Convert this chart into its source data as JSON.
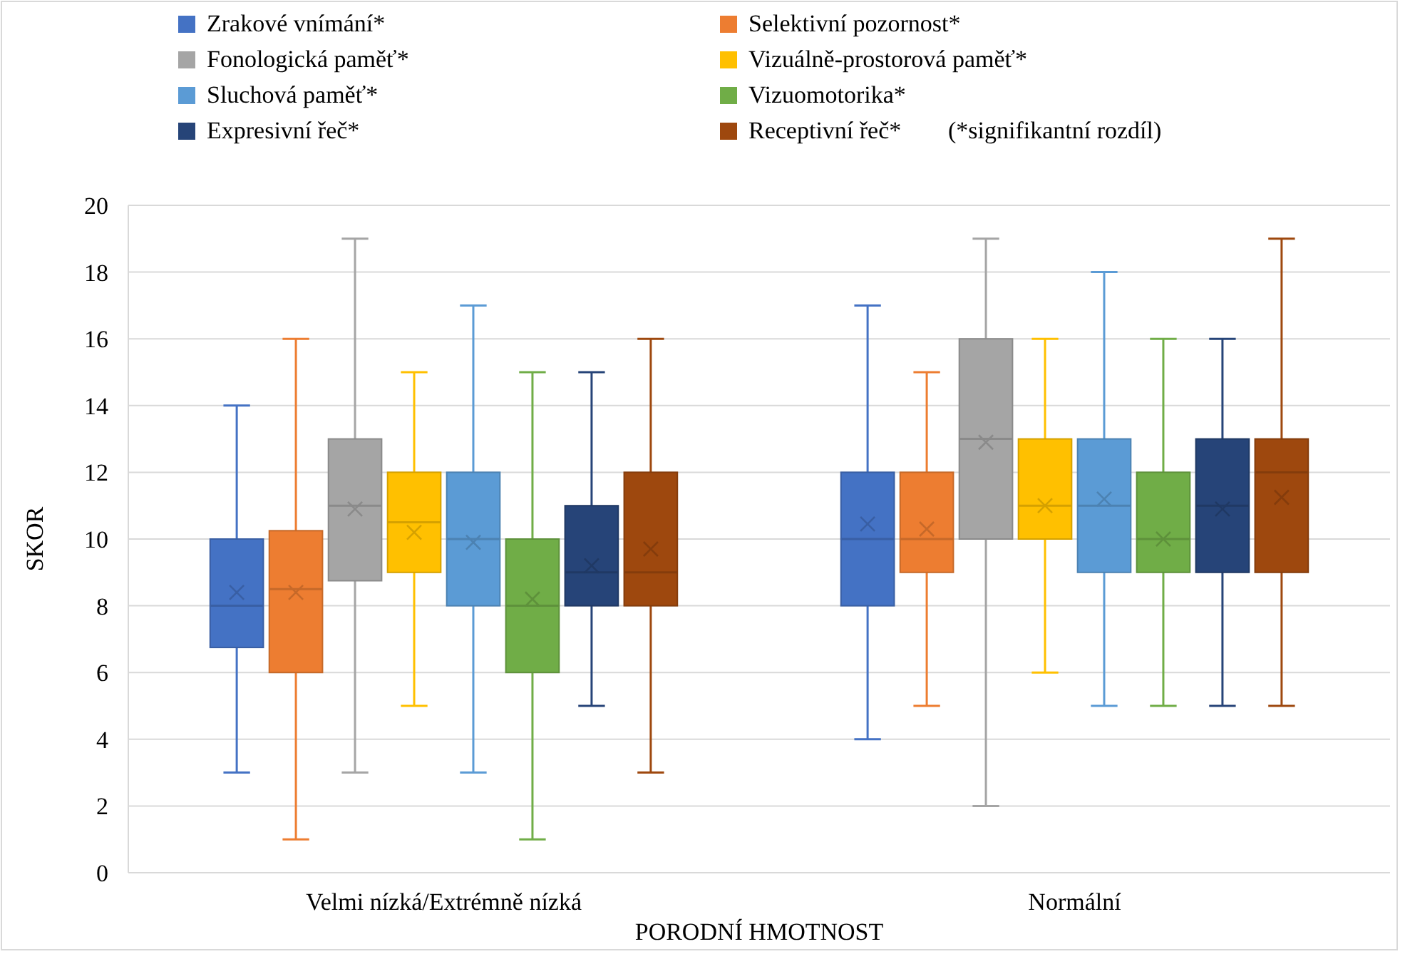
{
  "chart_data": {
    "type": "box",
    "xlabel": "PORODNÍ HMOTNOST",
    "ylabel": "SKOR",
    "categories": [
      "Velmi nízká/Extrémně nízká",
      "Normální"
    ],
    "ylim": [
      0,
      20
    ],
    "yticks": [
      0,
      2,
      4,
      6,
      8,
      10,
      12,
      14,
      16,
      18,
      20
    ],
    "grid": "y",
    "legend": "top",
    "annotations": [
      "(*signifikantní rozdíl)"
    ],
    "series": [
      {
        "name": "Zrakové vnímání*",
        "color": "#4472c4",
        "boxes": [
          {
            "low": 3,
            "q1": 6.75,
            "median": 8,
            "q3": 10,
            "high": 14,
            "mean": 8.4
          },
          {
            "low": 4,
            "q1": 8,
            "median": 10,
            "q3": 12,
            "high": 17,
            "mean": 10.45
          }
        ]
      },
      {
        "name": "Selektivní pozornost*",
        "color": "#ed7d31",
        "boxes": [
          {
            "low": 1,
            "q1": 6,
            "median": 8.5,
            "q3": 10.25,
            "high": 16,
            "mean": 8.4
          },
          {
            "low": 5,
            "q1": 9,
            "median": 10,
            "q3": 12,
            "high": 15,
            "mean": 10.3
          }
        ]
      },
      {
        "name": "Fonologická paměť*",
        "color": "#a5a5a5",
        "boxes": [
          {
            "low": 3,
            "q1": 8.75,
            "median": 11,
            "q3": 13,
            "high": 19,
            "mean": 10.9
          },
          {
            "low": 2,
            "q1": 10,
            "median": 13,
            "q3": 16,
            "high": 19,
            "mean": 12.9
          }
        ]
      },
      {
        "name": "Vizuálně-prostorová paměť*",
        "color": "#ffc000",
        "boxes": [
          {
            "low": 5,
            "q1": 9,
            "median": 10.5,
            "q3": 12,
            "high": 15,
            "mean": 10.2
          },
          {
            "low": 6,
            "q1": 10,
            "median": 11,
            "q3": 13,
            "high": 16,
            "mean": 11
          }
        ]
      },
      {
        "name": "Sluchová paměť*",
        "color": "#5b9bd5",
        "boxes": [
          {
            "low": 3,
            "q1": 8,
            "median": 10,
            "q3": 12,
            "high": 17,
            "mean": 9.9
          },
          {
            "low": 5,
            "q1": 9,
            "median": 11,
            "q3": 13,
            "high": 18,
            "mean": 11.2
          }
        ]
      },
      {
        "name": "Vizuomotorika*",
        "color": "#70ad47",
        "boxes": [
          {
            "low": 1,
            "q1": 6,
            "median": 8,
            "q3": 10,
            "high": 15,
            "mean": 8.2
          },
          {
            "low": 5,
            "q1": 9,
            "median": 10,
            "q3": 12,
            "high": 16,
            "mean": 10
          }
        ]
      },
      {
        "name": "Expresivní řeč*",
        "color": "#264478",
        "boxes": [
          {
            "low": 5,
            "q1": 8,
            "median": 9,
            "q3": 11,
            "high": 15,
            "mean": 9.2
          },
          {
            "low": 5,
            "q1": 9,
            "median": 11,
            "q3": 13,
            "high": 16,
            "mean": 10.9
          }
        ]
      },
      {
        "name": "Receptivní řeč*",
        "color": "#9e480e",
        "boxes": [
          {
            "low": 3,
            "q1": 8,
            "median": 9,
            "q3": 12,
            "high": 16,
            "mean": 9.7
          },
          {
            "low": 5,
            "q1": 9,
            "median": 12,
            "q3": 13,
            "high": 19,
            "mean": 11.25
          }
        ]
      }
    ]
  }
}
